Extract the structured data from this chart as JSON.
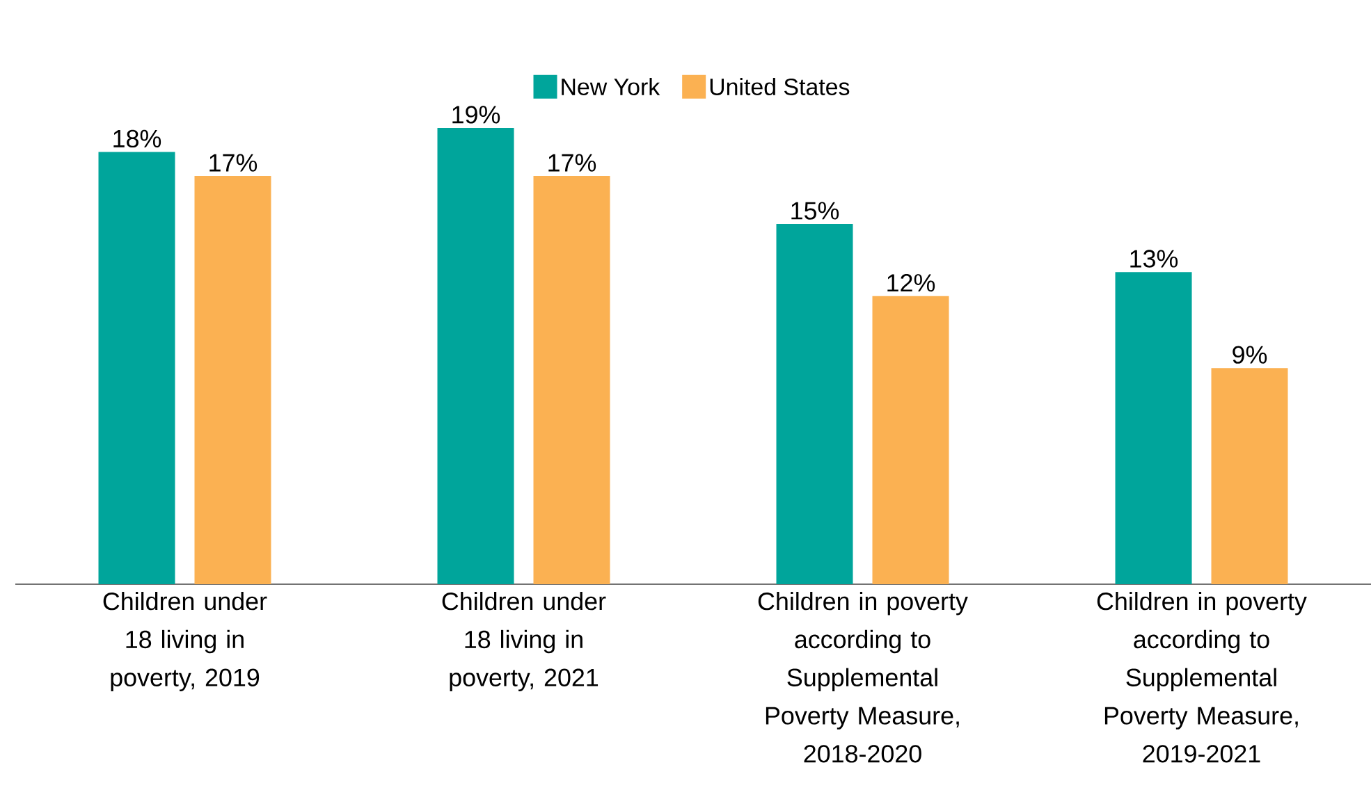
{
  "chart_data": {
    "type": "bar",
    "categories": [
      "Children under 18 living in poverty, 2019",
      "Children under 18 living in poverty, 2021",
      "Children in poverty according to Supplemental Poverty Measure, 2018-2020",
      "Children in poverty according to Supplemental Poverty Measure, 2019-2021"
    ],
    "series": [
      {
        "name": "New York",
        "color": "#00a59b",
        "values": [
          18,
          19,
          15,
          13
        ],
        "value_labels": [
          "18%",
          "19%",
          "15%",
          "13%"
        ]
      },
      {
        "name": "United States",
        "color": "#fbb152",
        "values": [
          17,
          17,
          12,
          9
        ],
        "value_labels": [
          "17%",
          "17%",
          "12%",
          "9%"
        ]
      }
    ],
    "legend": "top",
    "tick_labels": "x"
  }
}
